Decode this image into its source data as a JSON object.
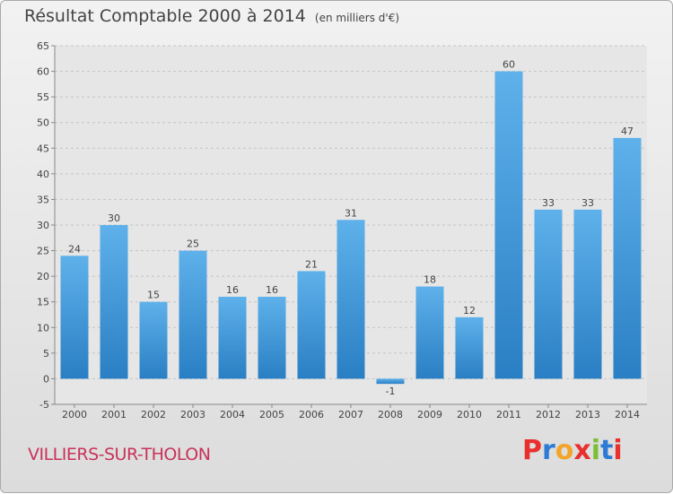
{
  "page": {
    "title": "Résultat Comptable 2000 à 2014",
    "unit": "(en milliers d'€)",
    "city": "VILLIERS-SUR-THOLON",
    "logo": "Proxiti",
    "logo_colors": [
      "#e8312f",
      "#2e7bd6",
      "#f2a52a",
      "#e8312f",
      "#7cbf37",
      "#2e7bd6",
      "#e8312f"
    ]
  },
  "chart_data": {
    "type": "bar",
    "title": "Résultat Comptable 2000 à 2014",
    "subtitle": "(en milliers d'€)",
    "categories": [
      "2000",
      "2001",
      "2002",
      "2003",
      "2004",
      "2005",
      "2006",
      "2007",
      "2008",
      "2009",
      "2010",
      "2011",
      "2012",
      "2013",
      "2014"
    ],
    "values": [
      24,
      30,
      15,
      25,
      16,
      16,
      21,
      31,
      -1,
      18,
      12,
      60,
      33,
      33,
      47
    ],
    "labels": [
      "24",
      "30",
      "15",
      "25",
      "16",
      "16",
      "21",
      "31",
      "-1",
      "18",
      "12",
      "60",
      "33",
      "33",
      "47"
    ],
    "ylim": [
      -5,
      65
    ],
    "yticks": [
      -5,
      0,
      5,
      10,
      15,
      20,
      25,
      30,
      35,
      40,
      45,
      50,
      55,
      60,
      65
    ],
    "grid": true,
    "bar_color": "#3d95d8"
  }
}
